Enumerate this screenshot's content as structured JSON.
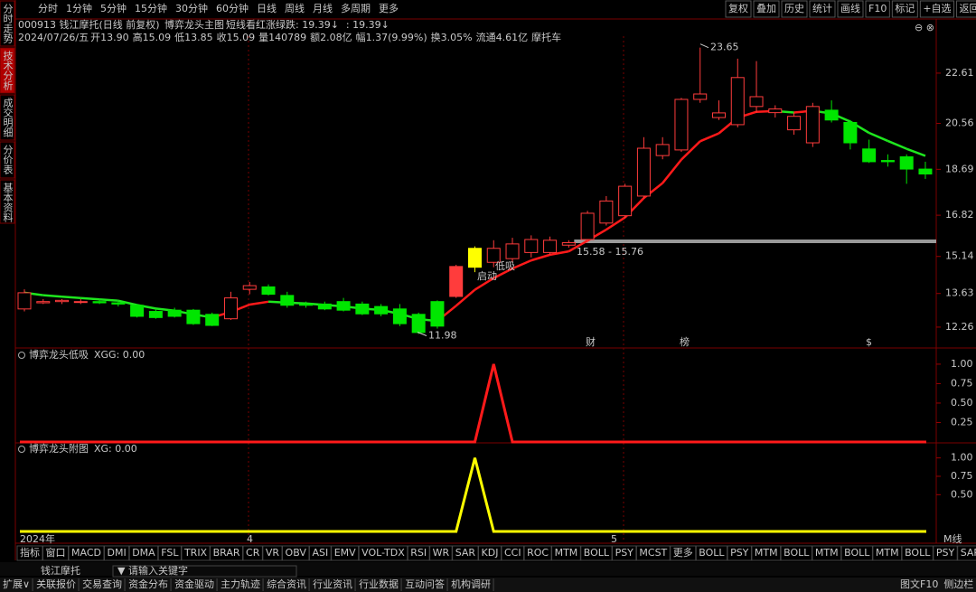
{
  "toolbar": {
    "left": [
      "分时",
      "1分钟",
      "5分钟",
      "15分钟",
      "30分钟",
      "60分钟",
      "日线",
      "周线",
      "月线",
      "多周期",
      "更多"
    ],
    "right": [
      "复权",
      "叠加",
      "历史",
      "统计",
      "画线",
      "F10",
      "标记",
      "+自选",
      "返回"
    ]
  },
  "side_tabs": [
    "分时走势",
    "技术分析",
    "成交明细",
    "分价表",
    "基本资料"
  ],
  "header": {
    "stock": "000913 钱江摩托(日线 前复权)",
    "indicator": "博弈龙头主图",
    "signal": "短线看红涨绿跌: 19.39↓",
    "signal2": ": 19.39↓",
    "quote": [
      "2024/07/26/五",
      "开13.90",
      "高15.09",
      "低13.85",
      "收15.09",
      "量140789",
      "额2.08亿",
      "幅1.37(9.99%)",
      "换3.05%",
      "流通4.61亿",
      "摩托车"
    ]
  },
  "main_chart": {
    "type": "candlestick",
    "ylim": [
      11.41,
      24.78
    ],
    "yticks": [
      22.61,
      20.56,
      18.69,
      16.82,
      15.14,
      13.63,
      12.26
    ],
    "colors": {
      "up": "#ff3c3c",
      "down": "#00e600",
      "signal": "#ffff00"
    },
    "signal_candle": 24,
    "candles": [
      [
        13.0,
        13.8,
        12.9,
        13.66
      ],
      [
        13.25,
        13.4,
        13.2,
        13.3
      ],
      [
        13.3,
        13.4,
        13.2,
        13.35
      ],
      [
        13.3,
        13.4,
        13.2,
        13.3
      ],
      [
        13.3,
        13.35,
        13.2,
        13.25
      ],
      [
        13.25,
        13.3,
        13.1,
        13.2
      ],
      [
        13.15,
        13.2,
        12.65,
        12.7
      ],
      [
        12.9,
        13.0,
        12.6,
        12.65
      ],
      [
        12.95,
        13.05,
        12.65,
        12.7
      ],
      [
        12.95,
        13.0,
        12.35,
        12.4
      ],
      [
        12.78,
        12.85,
        12.3,
        12.33
      ],
      [
        12.6,
        13.7,
        12.55,
        13.45
      ],
      [
        13.8,
        14.1,
        13.6,
        13.95
      ],
      [
        13.9,
        14.0,
        13.55,
        13.6
      ],
      [
        13.55,
        13.7,
        13.05,
        13.15
      ],
      [
        13.2,
        13.3,
        13.05,
        13.15
      ],
      [
        13.2,
        13.3,
        12.95,
        13.0
      ],
      [
        13.3,
        13.45,
        12.9,
        12.95
      ],
      [
        13.2,
        13.3,
        12.75,
        12.8
      ],
      [
        13.1,
        13.2,
        12.7,
        12.8
      ],
      [
        13.0,
        13.2,
        12.3,
        12.4
      ],
      [
        12.78,
        12.85,
        11.98,
        12.04
      ],
      [
        13.3,
        13.35,
        12.2,
        12.3
      ],
      [
        13.51,
        14.8,
        13.45,
        14.73
      ],
      [
        14.7,
        15.55,
        14.5,
        15.47
      ],
      [
        14.9,
        15.8,
        14.7,
        15.47
      ],
      [
        15.05,
        15.9,
        14.9,
        15.65
      ],
      [
        15.3,
        16.0,
        15.1,
        15.83
      ],
      [
        15.3,
        15.95,
        15.2,
        15.8
      ],
      [
        15.6,
        15.8,
        15.5,
        15.7
      ],
      [
        15.83,
        17.0,
        15.7,
        16.9
      ],
      [
        16.5,
        17.6,
        16.4,
        17.4
      ],
      [
        16.8,
        18.1,
        16.7,
        18.0
      ],
      [
        17.6,
        20.0,
        17.5,
        19.55
      ],
      [
        19.25,
        20.0,
        19.1,
        19.7
      ],
      [
        19.48,
        21.6,
        19.4,
        21.54
      ],
      [
        21.54,
        23.65,
        21.4,
        21.76
      ],
      [
        20.8,
        21.5,
        20.7,
        20.99
      ],
      [
        20.51,
        23.2,
        20.4,
        22.43
      ],
      [
        21.25,
        23.1,
        21.0,
        21.65
      ],
      [
        21.0,
        21.3,
        20.8,
        21.15
      ],
      [
        20.3,
        21.0,
        20.1,
        20.85
      ],
      [
        19.77,
        21.4,
        19.6,
        21.25
      ],
      [
        21.1,
        21.5,
        20.6,
        20.7
      ],
      [
        20.6,
        20.7,
        19.5,
        19.77
      ],
      [
        19.52,
        19.9,
        18.95,
        19.0
      ],
      [
        19.05,
        19.3,
        18.8,
        19.0
      ],
      [
        19.2,
        19.3,
        18.1,
        18.7
      ],
      [
        18.7,
        19.0,
        18.3,
        18.5
      ]
    ],
    "high_label": 23.65,
    "low_label": 11.98,
    "support_label": "15.58 - 15.76",
    "signal_texts": [
      "启动",
      "低吸"
    ],
    "event_markers": [
      "财",
      "榜",
      "$"
    ],
    "x_labels": [
      "2024年",
      "4",
      "5"
    ],
    "corner_label": "M线"
  },
  "indicators": [
    {
      "title": "博弈龙头低吸",
      "label": "XGG: 0.00",
      "color": "#ff1a1a",
      "ylim": [
        0,
        1.15
      ],
      "yticks": [
        {
          "value": 1,
          "label": "1.00"
        },
        {
          "value": 0.75,
          "label": "0.75"
        },
        {
          "value": 0.5,
          "label": "0.50"
        },
        {
          "value": 0.25,
          "label": "0.25"
        }
      ],
      "values": [
        0,
        0,
        0,
        0,
        0,
        0,
        0,
        0,
        0,
        0,
        0,
        0,
        0,
        0,
        0,
        0,
        0,
        0,
        0,
        0,
        0,
        0,
        0,
        0,
        0,
        1,
        0,
        0,
        0,
        0,
        0,
        0,
        0,
        0,
        0,
        0,
        0,
        0,
        0,
        0,
        0,
        0,
        0,
        0,
        0,
        0,
        0,
        0,
        0
      ]
    },
    {
      "title": "博弈龙头附图",
      "label": "XG: 0.00",
      "color": "#ffff00",
      "ylim": [
        0,
        1.18
      ],
      "yticks": [
        {
          "value": 1,
          "label": "1.00"
        },
        {
          "value": 0.75,
          "label": "0.75"
        },
        {
          "value": 0.5,
          "label": "0.50"
        }
      ],
      "values": [
        0,
        0,
        0,
        0,
        0,
        0,
        0,
        0,
        0,
        0,
        0,
        0,
        0,
        0,
        0,
        0,
        0,
        0,
        0,
        0,
        0,
        0,
        0,
        0,
        1,
        0,
        0,
        0,
        0,
        0,
        0,
        0,
        0,
        0,
        0,
        0,
        0,
        0,
        0,
        0,
        0,
        0,
        0,
        0,
        0,
        0,
        0,
        0,
        0
      ]
    }
  ],
  "indicator_tabs": [
    "指标",
    "窗口",
    "MACD",
    "DMI",
    "DMA",
    "FSL",
    "TRIX",
    "BRAR",
    "CR",
    "VR",
    "OBV",
    "ASI",
    "EMV",
    "VOL-TDX",
    "RSI",
    "WR",
    "SAR",
    "KDJ",
    "CCI",
    "ROC",
    "MTM",
    "BOLL",
    "PSY",
    "MCST",
    "更多",
    "BOLL",
    "PSY",
    "MTM",
    "BOLL",
    "MTM",
    "BOLL",
    "MTM",
    "BOLL",
    "PSY",
    "SAR"
  ],
  "search": {
    "stock": "钱江摩托",
    "placeholder": "请输入关键字"
  },
  "status_bar": {
    "left": [
      "扩展∨",
      "关联报价",
      "交易查询",
      "资金分布",
      "资金驱动",
      "主力轨迹",
      "综合资讯",
      "行业资讯",
      "行业数据",
      "互动问答",
      "机构调研"
    ],
    "right": [
      "图文F10",
      "侧边栏"
    ]
  }
}
